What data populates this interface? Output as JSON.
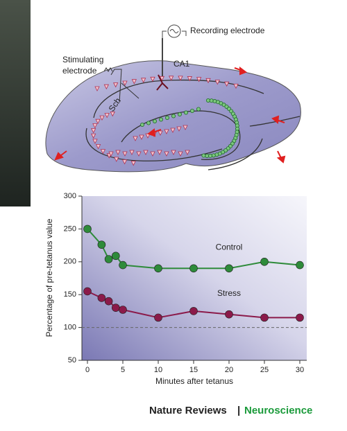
{
  "diagram": {
    "recording_label": "Recording electrode",
    "stimulating_label": [
      "Stimulating",
      "electrode"
    ],
    "ca1_label": "CA1",
    "sch_label": "Sch"
  },
  "chart_data": {
    "type": "line",
    "xlabel": "Minutes after tetanus",
    "ylabel": "Percentage of pre-tetanus value",
    "x": [
      0,
      2,
      3,
      4,
      5,
      10,
      15,
      20,
      25,
      30
    ],
    "series": [
      {
        "name": "Control",
        "color": "#2e8b3a",
        "values": [
          250,
          226,
          204,
          209,
          195,
          190,
          190,
          190,
          200,
          195
        ]
      },
      {
        "name": "Stress",
        "color": "#8b1a4a",
        "values": [
          155,
          145,
          140,
          130,
          127,
          115,
          125,
          120,
          115,
          115
        ]
      }
    ],
    "xlim": [
      0,
      30
    ],
    "xticks": [
      0,
      5,
      10,
      15,
      20,
      25,
      30
    ],
    "ylim": [
      50,
      300
    ],
    "yticks": [
      50,
      100,
      150,
      200,
      250,
      300
    ],
    "reference_line": 100
  },
  "footer": {
    "journal": "Nature Reviews",
    "separator": "|",
    "subject": "Neuroscience"
  }
}
